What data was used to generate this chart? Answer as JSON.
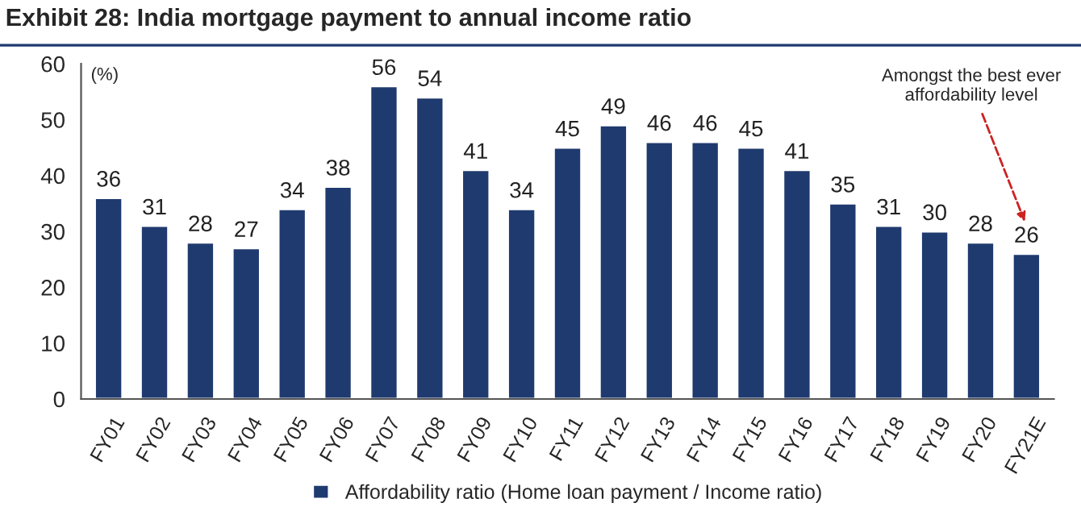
{
  "chart_data": {
    "type": "bar",
    "title": "Exhibit 28: India mortgage payment to annual income ratio",
    "ylabel": "(%)",
    "categories": [
      "FY01",
      "FY02",
      "FY03",
      "FY04",
      "FY05",
      "FY06",
      "FY07",
      "FY08",
      "FY09",
      "FY10",
      "FY11",
      "FY12",
      "FY13",
      "FY14",
      "FY15",
      "FY16",
      "FY17",
      "FY18",
      "FY19",
      "FY20",
      "FY21E"
    ],
    "series": [
      {
        "name": "Affordability ratio (Home loan payment / Income ratio)",
        "color": "#1f3a6e",
        "values": [
          36,
          31,
          28,
          27,
          34,
          38,
          56,
          54,
          41,
          34,
          45,
          49,
          46,
          46,
          45,
          41,
          35,
          31,
          30,
          28,
          26
        ]
      }
    ],
    "ylim": [
      0,
      60
    ],
    "yticks": [
      0,
      10,
      20,
      30,
      40,
      50,
      60
    ],
    "data_labels": true,
    "legend": "bottom",
    "grid": false,
    "annotations": [
      "Amongst the best ever\naffordability level"
    ]
  }
}
